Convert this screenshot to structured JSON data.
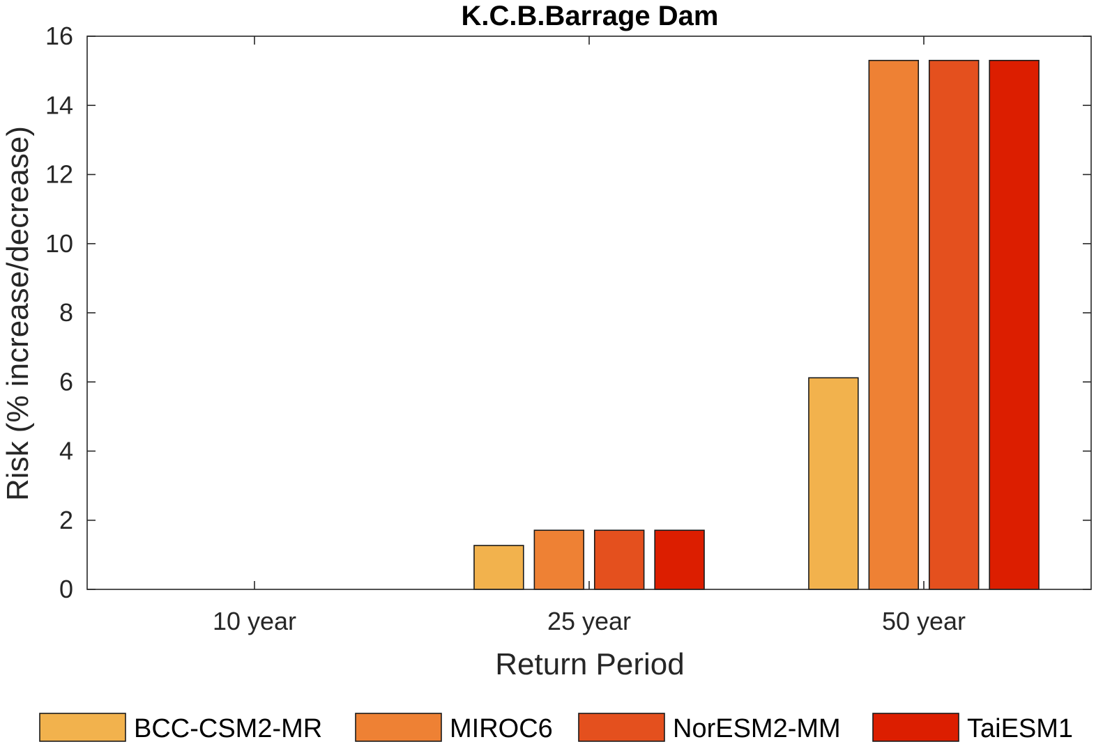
{
  "chart_data": {
    "type": "bar",
    "title": "K.C.B.Barrage Dam",
    "xlabel": "Return Period",
    "ylabel": "Risk (% increase/decrease)",
    "categories": [
      "10 year",
      "25 year",
      "50 year"
    ],
    "ylim": [
      0,
      16
    ],
    "yticks": [
      0,
      2,
      4,
      6,
      8,
      10,
      12,
      14,
      16
    ],
    "grid": false,
    "legend_position": "bottom",
    "series": [
      {
        "name": "BCC-CSM2-MR",
        "color": "#F2B24D",
        "values": [
          0,
          1.27,
          6.12
        ]
      },
      {
        "name": "MIROC6",
        "color": "#EE8134",
        "values": [
          0,
          1.71,
          15.3
        ]
      },
      {
        "name": "NorESM2-MM",
        "color": "#E4501E",
        "values": [
          0,
          1.71,
          15.3
        ]
      },
      {
        "name": "TaiESM1",
        "color": "#DC1E00",
        "values": [
          0,
          1.71,
          15.3
        ]
      }
    ]
  }
}
